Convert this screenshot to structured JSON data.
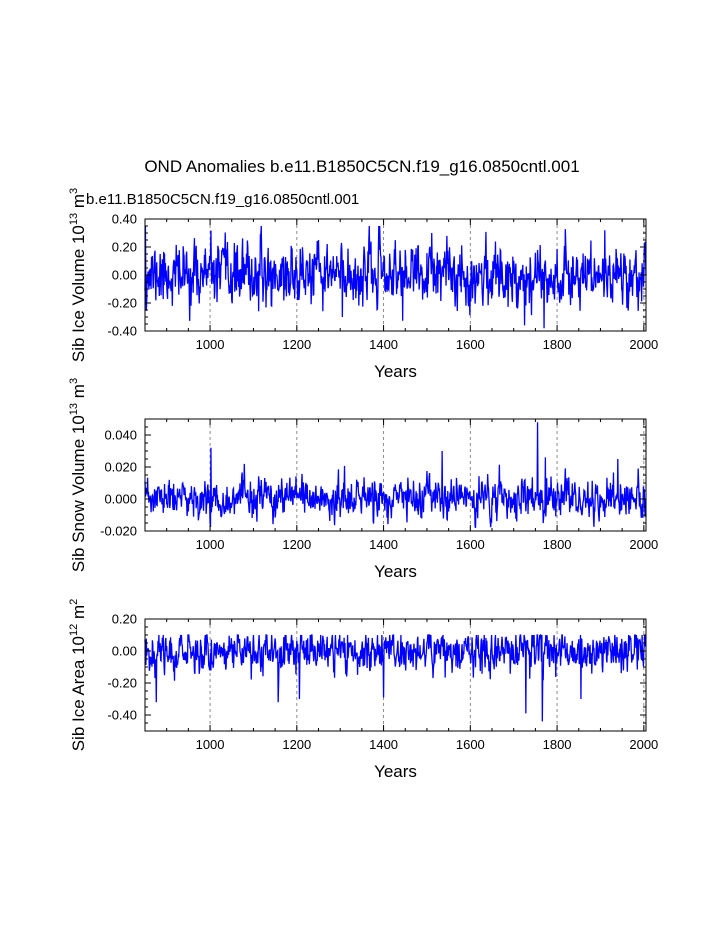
{
  "figure": {
    "title": "OND Anomalies b.e11.B1850C5CN.f19_g16.0850cntl.001",
    "subtitle": "b.e11.B1850C5CN.f19_g16.0850cntl.001",
    "colors": {
      "series": "#0000ff",
      "grid": "#808080",
      "axis": "#000000",
      "subtitle": "#0000ff"
    }
  },
  "chart_data": [
    {
      "type": "line",
      "name": "sib-ice-volume",
      "ylabel_base": "Sib Ice Volume 10",
      "ylabel_exp": "13",
      "ylabel_unit": " m",
      "ylabel_unit_exp": "3",
      "xlabel": "Years",
      "xlim": [
        850,
        2005
      ],
      "ylim": [
        -0.4,
        0.4
      ],
      "xticks": [
        "1000",
        "1200",
        "1400",
        "1600",
        "1800",
        "2000"
      ],
      "yticks": [
        "0.40",
        "0.20",
        "0.00",
        "-0.20",
        "-0.40"
      ],
      "series": [
        {
          "name": "b.e11.B1850C5CN.f19_g16.0850cntl.001",
          "color": "#0000ff",
          "seed": 11,
          "std": 0.1,
          "clip": [
            -0.38,
            0.35
          ],
          "spikes": [
            [
              851,
              0.35
            ],
            [
              1305,
              -0.3
            ],
            [
              1725,
              -0.36
            ],
            [
              1770,
              -0.38
            ],
            [
              1910,
              0.32
            ]
          ]
        }
      ]
    },
    {
      "type": "line",
      "name": "sib-snow-volume",
      "ylabel_base": "Sib Snow Volume 10",
      "ylabel_exp": "13",
      "ylabel_unit": " m",
      "ylabel_unit_exp": "3",
      "xlabel": "Years",
      "xlim": [
        850,
        2005
      ],
      "ylim": [
        -0.02,
        0.05
      ],
      "xticks": [
        "1000",
        "1200",
        "1400",
        "1600",
        "1800",
        "2000"
      ],
      "yticks": [
        "0.040",
        "0.020",
        "0.000",
        "-0.020"
      ],
      "series": [
        {
          "name": "b.e11.B1850C5CN.f19_g16.0850cntl.001",
          "color": "#0000ff",
          "seed": 23,
          "std": 0.0055,
          "clip": [
            -0.018,
            0.048
          ],
          "spikes": [
            [
              1002,
              0.032
            ],
            [
              1535,
              0.03
            ],
            [
              1755,
              0.048
            ],
            [
              1773,
              0.026
            ],
            [
              1940,
              0.025
            ]
          ]
        }
      ]
    },
    {
      "type": "line",
      "name": "sib-ice-area",
      "ylabel_base": "Sib Ice Area 10",
      "ylabel_exp": "12",
      "ylabel_unit": " m",
      "ylabel_unit_exp": "2",
      "xlabel": "Years",
      "xlim": [
        850,
        2005
      ],
      "ylim": [
        -0.5,
        0.2
      ],
      "xticks": [
        "1000",
        "1200",
        "1400",
        "1600",
        "1800",
        "2000"
      ],
      "yticks": [
        "0.20",
        "0.00",
        "-0.20",
        "-0.40"
      ],
      "series": [
        {
          "name": "b.e11.B1850C5CN.f19_g16.0850cntl.001",
          "color": "#0000ff",
          "seed": 37,
          "std": 0.06,
          "clip": [
            -0.44,
            0.1
          ],
          "spikes": [
            [
              876,
              -0.32
            ],
            [
              1157,
              -0.32
            ],
            [
              1206,
              -0.3
            ],
            [
              1400,
              -0.29
            ],
            [
              1728,
              -0.39
            ],
            [
              1766,
              -0.44
            ],
            [
              1855,
              -0.3
            ]
          ]
        }
      ]
    }
  ]
}
